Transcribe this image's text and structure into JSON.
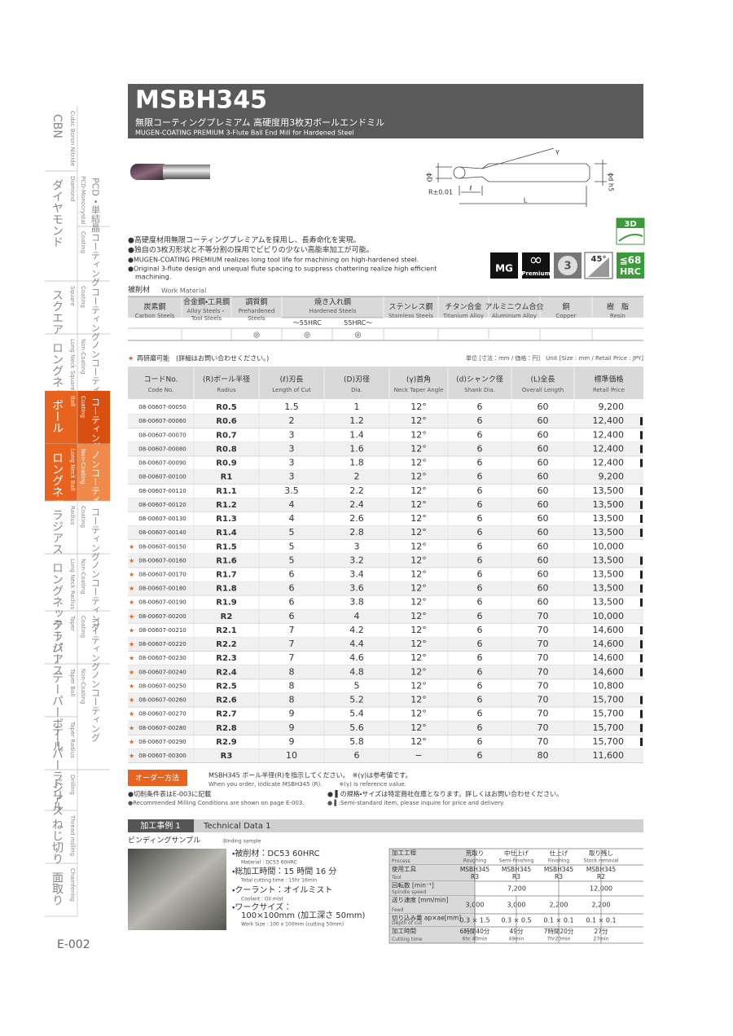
{
  "header": {
    "title": "MSBH345",
    "subtitle_jp": "無限コーティングプレミアム 高硬度用3枚刃ボールエンドミル",
    "subtitle_en": "MUGEN-COATING PREMIUM 3-Flute Ball End Mill for Hardened Steel"
  },
  "sidebar": {
    "categories": [
      {
        "jp": "CBN",
        "en": "Cubic Boron Nitride"
      },
      {
        "jp": "ダイヤモンド",
        "en": "Diamond"
      },
      {
        "jp": "スクエア",
        "en": "Square"
      },
      {
        "jp": "ロングネックスクエア",
        "en": "Long Neck Square"
      },
      {
        "jp": "ボール",
        "en": "Ball"
      },
      {
        "jp": "ロングネックボール",
        "en": "Long Neck Ball"
      },
      {
        "jp": "ラジアス",
        "en": "Radius"
      },
      {
        "jp": "ロングネックラジアス",
        "en": "Long Neck Radius"
      },
      {
        "jp": "テーパー",
        "en": "Taper"
      },
      {
        "jp": "テーパーボール",
        "en": "Taper Ball"
      },
      {
        "jp": "テーパーラジアス",
        "en": "Taper Radius"
      },
      {
        "jp": "ドリル",
        "en": "Drilling"
      },
      {
        "jp": "ねじ切り",
        "en": "Thread milling"
      },
      {
        "jp": "面取り",
        "en": "Chamfering"
      }
    ],
    "subcategories": [
      {
        "jp": "PCD・単結晶",
        "en": "PCD-Monocrystal"
      },
      {
        "jp": "コーティング",
        "en": "Coating"
      },
      {
        "jp": "コーティング",
        "en": "Coating"
      },
      {
        "jp": "ノンコーティング",
        "en": "Non-Coating"
      },
      {
        "jp": "コーティング",
        "en": "Coating"
      },
      {
        "jp": "ノンコーティング",
        "en": "Non-Coating"
      },
      {
        "jp": "コーティング",
        "en": "Coating"
      },
      {
        "jp": "ノンコーティング",
        "en": "Non-Coating"
      },
      {
        "jp": "コーティング",
        "en": "Coating"
      },
      {
        "jp": "ノンコーティング",
        "en": "Non-Coating"
      }
    ]
  },
  "page_number": "E-002",
  "diagram": {
    "dia": "ϕD",
    "radius": "R±0.01",
    "cut": "ℓ",
    "length": "L",
    "shank": "ϕd h5",
    "angle": "γ"
  },
  "icons": {
    "d3": "3D",
    "mg": "MG",
    "infinity": "∞",
    "premium": "Premium",
    "flutes": "3",
    "angle": "45°",
    "hrc_top": "≦68",
    "hrc": "HRC"
  },
  "features": [
    "●高硬度材用無限コーティングプレミアムを採用し、長寿命化を実現。",
    "●独自の3枚刃形状と不等分割の採用でビビりの少ない高能率加工が可能。",
    "●MUGEN-COATING PREMIUM realizes long tool life for machining on high-hardened steel.",
    "●Original 3-flute design and unequal flute spacing to suppress chattering realize high efficient",
    "machining."
  ],
  "work_material": {
    "label_jp": "被削材",
    "label_en": "Work Material",
    "columns": [
      {
        "jp": "炭素鋼",
        "en": [
          "Carbon Steels"
        ]
      },
      {
        "jp": "合金鋼・工具鋼",
        "en": [
          "Alloy Steels・",
          "Tool Steels"
        ]
      },
      {
        "jp": "調質鋼",
        "en": [
          "Prehardened",
          "Steels"
        ]
      },
      {
        "jp": "焼き入れ鋼",
        "en": [
          "Hardened Steels"
        ],
        "sub": [
          "～55HRC",
          "55HRC～"
        ]
      },
      {
        "jp": "ステンレス鋼",
        "en": [
          "Stainless Steels"
        ]
      },
      {
        "jp": "チタン合金",
        "en": [
          "Titanium Alloy"
        ]
      },
      {
        "jp": "アルミニウム合金",
        "en": [
          "Aluminum Alloy"
        ]
      },
      {
        "jp": "銅",
        "en": [
          "Copper"
        ]
      },
      {
        "jp": "樹　脂",
        "en": [
          "Resin"
        ]
      }
    ],
    "marks": [
      null,
      null,
      "◎",
      "◎",
      "◎",
      null,
      null,
      null,
      null,
      null
    ]
  },
  "notes": {
    "star_symbol": "★",
    "regrind": "再研磨可能　(詳細はお問い合わせください。)",
    "unit": "単位 [寸法：mm / 価格：円]　Unit [Size : mm / Retail Price : JPY]"
  },
  "table": {
    "headers": [
      {
        "jp": "コードNo.",
        "en": "Code No."
      },
      {
        "jp": "(R)ボール半径",
        "en": "Radius"
      },
      {
        "jp": "(ℓ)刃長",
        "en": "Length of Cut"
      },
      {
        "jp": "(D)刃径",
        "en": "Dia."
      },
      {
        "jp": "(γ)首角",
        "en": "Neck Taper Angle"
      },
      {
        "jp": "(d)シャンク径",
        "en": "Shank Dia."
      },
      {
        "jp": "(L)全長",
        "en": "Overall Length"
      },
      {
        "jp": "標準価格",
        "en": "Retail Price"
      }
    ],
    "rows": [
      {
        "star": false,
        "semi_standard": false,
        "cells": [
          "08-00607-00050",
          "R0.5",
          "1.5",
          "1",
          "12°",
          "6",
          "60",
          "9,200"
        ]
      },
      {
        "star": false,
        "semi_standard": true,
        "cells": [
          "08-00607-00060",
          "R0.6",
          "2",
          "1.2",
          "12°",
          "6",
          "60",
          "12,400"
        ]
      },
      {
        "star": false,
        "semi_standard": true,
        "cells": [
          "08-00607-00070",
          "R0.7",
          "3",
          "1.4",
          "12°",
          "6",
          "60",
          "12,400"
        ]
      },
      {
        "star": false,
        "semi_standard": true,
        "cells": [
          "08-00607-00080",
          "R0.8",
          "3",
          "1.6",
          "12°",
          "6",
          "60",
          "12,400"
        ]
      },
      {
        "star": false,
        "semi_standard": true,
        "cells": [
          "08-00607-00090",
          "R0.9",
          "3",
          "1.8",
          "12°",
          "6",
          "60",
          "12,400"
        ]
      },
      {
        "star": false,
        "semi_standard": false,
        "cells": [
          "08-00607-00100",
          "R1",
          "3",
          "2",
          "12°",
          "6",
          "60",
          "9,200"
        ]
      },
      {
        "star": false,
        "semi_standard": true,
        "cells": [
          "08-00607-00110",
          "R1.1",
          "3.5",
          "2.2",
          "12°",
          "6",
          "60",
          "13,500"
        ]
      },
      {
        "star": false,
        "semi_standard": true,
        "cells": [
          "08-00607-00120",
          "R1.2",
          "4",
          "2.4",
          "12°",
          "6",
          "60",
          "13,500"
        ]
      },
      {
        "star": false,
        "semi_standard": true,
        "cells": [
          "08-00607-00130",
          "R1.3",
          "4",
          "2.6",
          "12°",
          "6",
          "60",
          "13,500"
        ]
      },
      {
        "star": false,
        "semi_standard": true,
        "cells": [
          "08-00607-00140",
          "R1.4",
          "5",
          "2.8",
          "12°",
          "6",
          "60",
          "13,500"
        ]
      },
      {
        "star": true,
        "semi_standard": false,
        "cells": [
          "08-00607-00150",
          "R1.5",
          "5",
          "3",
          "12°",
          "6",
          "60",
          "10,000"
        ]
      },
      {
        "star": true,
        "semi_standard": true,
        "cells": [
          "08-00607-00160",
          "R1.6",
          "5",
          "3.2",
          "12°",
          "6",
          "60",
          "13,500"
        ]
      },
      {
        "star": true,
        "semi_standard": true,
        "cells": [
          "08-00607-00170",
          "R1.7",
          "6",
          "3.4",
          "12°",
          "6",
          "60",
          "13,500"
        ]
      },
      {
        "star": true,
        "semi_standard": true,
        "cells": [
          "08-00607-00180",
          "R1.8",
          "6",
          "3.6",
          "12°",
          "6",
          "60",
          "13,500"
        ]
      },
      {
        "star": true,
        "semi_standard": true,
        "cells": [
          "08-00607-00190",
          "R1.9",
          "6",
          "3.8",
          "12°",
          "6",
          "60",
          "13,500"
        ]
      },
      {
        "star": true,
        "semi_standard": false,
        "cells": [
          "08-00607-00200",
          "R2",
          "6",
          "4",
          "12°",
          "6",
          "70",
          "10,000"
        ]
      },
      {
        "star": true,
        "semi_standard": true,
        "cells": [
          "08-00607-00210",
          "R2.1",
          "7",
          "4.2",
          "12°",
          "6",
          "70",
          "14,600"
        ]
      },
      {
        "star": true,
        "semi_standard": true,
        "cells": [
          "08-00607-00220",
          "R2.2",
          "7",
          "4.4",
          "12°",
          "6",
          "70",
          "14,600"
        ]
      },
      {
        "star": true,
        "semi_standard": true,
        "cells": [
          "08-00607-00230",
          "R2.3",
          "7",
          "4.6",
          "12°",
          "6",
          "70",
          "14,600"
        ]
      },
      {
        "star": true,
        "semi_standard": true,
        "cells": [
          "08-00607-00240",
          "R2.4",
          "8",
          "4.8",
          "12°",
          "6",
          "70",
          "14,600"
        ]
      },
      {
        "star": true,
        "semi_standard": false,
        "cells": [
          "08-00607-00250",
          "R2.5",
          "8",
          "5",
          "12°",
          "6",
          "70",
          "10,800"
        ]
      },
      {
        "star": true,
        "semi_standard": true,
        "cells": [
          "08-00607-00260",
          "R2.6",
          "8",
          "5.2",
          "12°",
          "6",
          "70",
          "15,700"
        ]
      },
      {
        "star": true,
        "semi_standard": true,
        "cells": [
          "08-00607-00270",
          "R2.7",
          "9",
          "5.4",
          "12°",
          "6",
          "70",
          "15,700"
        ]
      },
      {
        "star": true,
        "semi_standard": true,
        "cells": [
          "08-00607-00280",
          "R2.8",
          "9",
          "5.6",
          "12°",
          "6",
          "70",
          "15,700"
        ]
      },
      {
        "star": true,
        "semi_standard": true,
        "cells": [
          "08-00607-00290",
          "R2.9",
          "9",
          "5.8",
          "12°",
          "6",
          "70",
          "15,700"
        ]
      },
      {
        "star": true,
        "semi_standard": false,
        "cells": [
          "08-00607-00300",
          "R3",
          "10",
          "6",
          "−",
          "6",
          "80",
          "11,600"
        ]
      }
    ]
  },
  "order": {
    "label": "オーダー方法",
    "jp": "MSBH345 ボール半径(R)を指示してください。　※(γ)は参考値です。",
    "en": "When you order, indicate MSBH345 (R).　　　※(γ) is reference value.",
    "cond_jp": "●切削条件表はE-003に記載",
    "cond_en": "●Recommended Milling Conditions are shown on page E-003.",
    "semi_jp": "● ▌の規格・サイズは特定商社在庫となります。詳しくはお問い合わせください。",
    "semi_en": "● ▌:Semi-standard item, please inquire for price and delivery."
  },
  "technical": {
    "badge": "加工事例 1",
    "title": "Technical Data 1",
    "sample_jp": "ビンディングサンプル",
    "sample_en": "Binding sample",
    "conditions": [
      "・被削材：DC53 60HRC",
      "Material : DC53 60HRC",
      "・総加工時間：15 時間 16 分",
      "Total cutting time : 15hr 16min",
      "・クーラント：オイルミスト",
      "Coolant : Oil mist",
      "・ワークサイズ：",
      "100×100mm (加工深さ 50mm)",
      "Work Size : 100 x 100mm (cutting 50mm)"
    ],
    "rows": [
      {
        "label": [
          "加工工程",
          "Process"
        ],
        "cells": [
          [
            "荒取り",
            "Roughing"
          ],
          [
            "中仕上げ",
            "Semi-finishing"
          ],
          [
            "仕上げ",
            "Finishing"
          ],
          [
            "取り残し",
            "Stock removal"
          ]
        ]
      },
      {
        "label": [
          "使用工具",
          "Tool"
        ],
        "cells": [
          [
            "MSBH345",
            "R3"
          ],
          [
            "MSBH345",
            "R3"
          ],
          [
            "MSBH345",
            "R3"
          ],
          [
            "MSBH345",
            "R2"
          ]
        ]
      },
      {
        "label": [
          "回転数 [min⁻¹]",
          "Spindle speed"
        ],
        "cells": [
          [
            "7,200"
          ],
          null,
          null,
          [
            "12,000"
          ]
        ]
      },
      {
        "label": [
          "送り速度 [mm/min]",
          "Feed"
        ],
        "cells": [
          [
            "3,000"
          ],
          [
            "3,000"
          ],
          [
            "2,200"
          ],
          [
            "2,200"
          ]
        ]
      },
      {
        "label": [
          "切り込み量 ap×ae[mm]",
          "Depth of cut"
        ],
        "cells": [
          [
            "0.3 × 1.5"
          ],
          [
            "0.3 × 0.5"
          ],
          [
            "0.1 × 0.1"
          ],
          [
            "0.1 × 0.1"
          ]
        ]
      },
      {
        "label": [
          "加工時間",
          "Cutting time"
        ],
        "cells": [
          [
            "6時間40分",
            "6hr 40min"
          ],
          [
            "49分",
            "49min"
          ],
          [
            "7時間20分",
            "7hr20min"
          ],
          [
            "27分",
            "27min"
          ]
        ]
      }
    ]
  }
}
